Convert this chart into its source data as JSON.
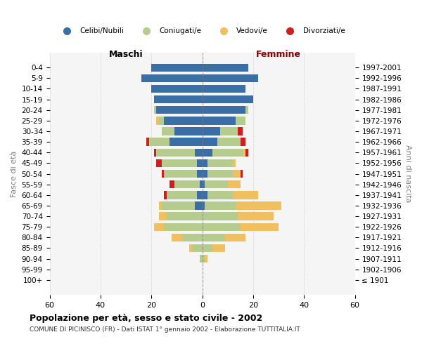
{
  "age_groups": [
    "100+",
    "95-99",
    "90-94",
    "85-89",
    "80-84",
    "75-79",
    "70-74",
    "65-69",
    "60-64",
    "55-59",
    "50-54",
    "45-49",
    "40-44",
    "35-39",
    "30-34",
    "25-29",
    "20-24",
    "15-19",
    "10-14",
    "5-9",
    "0-4"
  ],
  "birth_years": [
    "≤ 1901",
    "1902-1906",
    "1907-1911",
    "1912-1916",
    "1917-1921",
    "1922-1926",
    "1927-1931",
    "1932-1936",
    "1937-1941",
    "1942-1946",
    "1947-1951",
    "1952-1956",
    "1957-1961",
    "1962-1966",
    "1967-1971",
    "1972-1976",
    "1977-1981",
    "1982-1986",
    "1987-1991",
    "1992-1996",
    "1997-2001"
  ],
  "male": {
    "celibi": [
      0,
      0,
      0,
      0,
      0,
      0,
      0,
      3,
      2,
      1,
      2,
      2,
      3,
      13,
      11,
      15,
      18,
      19,
      20,
      24,
      20
    ],
    "coniugati": [
      0,
      0,
      1,
      4,
      8,
      15,
      14,
      13,
      12,
      10,
      13,
      14,
      15,
      8,
      5,
      2,
      1,
      0,
      0,
      0,
      0
    ],
    "vedovi": [
      0,
      0,
      0,
      1,
      4,
      4,
      3,
      1,
      0,
      0,
      0,
      0,
      0,
      0,
      0,
      1,
      0,
      0,
      0,
      0,
      0
    ],
    "divorziati": [
      0,
      0,
      0,
      0,
      0,
      0,
      0,
      0,
      1,
      2,
      1,
      2,
      1,
      1,
      0,
      0,
      0,
      0,
      0,
      0,
      0
    ]
  },
  "female": {
    "nubili": [
      0,
      0,
      0,
      0,
      0,
      0,
      0,
      1,
      2,
      1,
      2,
      2,
      4,
      6,
      7,
      13,
      17,
      20,
      17,
      22,
      18
    ],
    "coniugate": [
      0,
      0,
      1,
      4,
      9,
      15,
      14,
      12,
      10,
      9,
      10,
      10,
      12,
      9,
      7,
      4,
      1,
      0,
      0,
      0,
      0
    ],
    "vedove": [
      0,
      0,
      1,
      5,
      8,
      15,
      14,
      18,
      10,
      5,
      3,
      1,
      1,
      0,
      0,
      0,
      0,
      0,
      0,
      0,
      0
    ],
    "divorziate": [
      0,
      0,
      0,
      0,
      0,
      0,
      0,
      0,
      0,
      0,
      1,
      0,
      1,
      2,
      2,
      0,
      0,
      0,
      0,
      0,
      0
    ]
  },
  "colors": {
    "celibi": "#3a6ea5",
    "coniugati": "#b5cc8e",
    "vedovi": "#f0c060",
    "divorziati": "#cc2020"
  },
  "xlim": 60,
  "title": "Popolazione per età, sesso e stato civile - 2002",
  "subtitle": "COMUNE DI PICINISCO (FR) - Dati ISTAT 1° gennaio 2002 - Elaborazione TUTTITALIA.IT",
  "ylabel_left": "Fasce di età",
  "ylabel_right": "Anni di nascita",
  "maschi_label": "Maschi",
  "femmine_label": "Femmine",
  "legend_labels": [
    "Celibi/Nubili",
    "Coniugati/e",
    "Vedovi/e",
    "Divorziati/e"
  ]
}
